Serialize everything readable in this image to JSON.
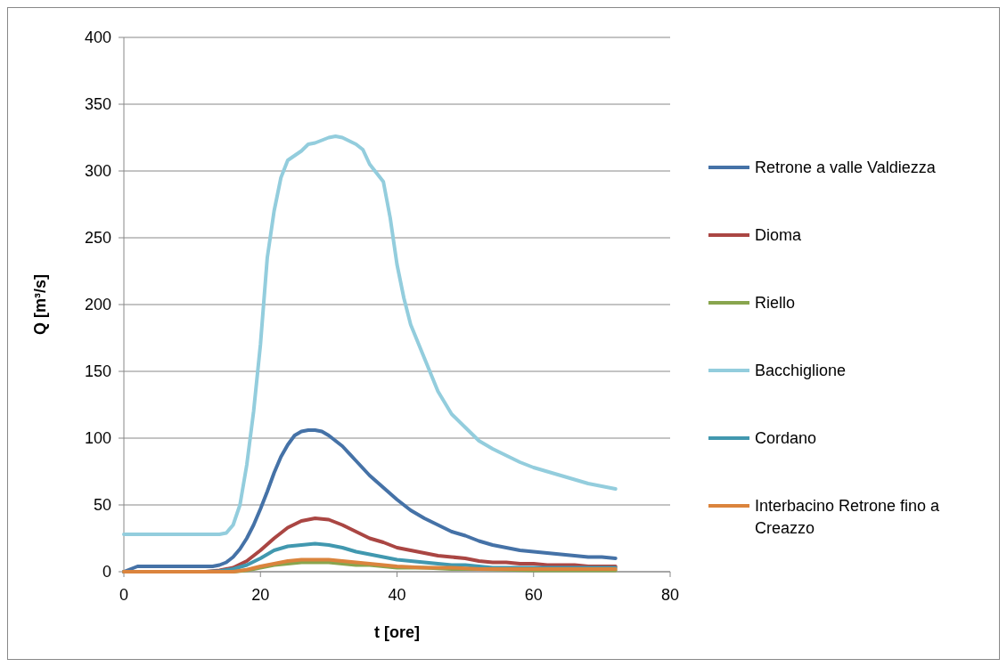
{
  "chart_data": {
    "type": "line",
    "xlabel": "t [ore]",
    "ylabel": "Q [m³/s]",
    "xlim": [
      0,
      80
    ],
    "xticks": [
      0,
      20,
      40,
      60,
      80
    ],
    "ylim": [
      0,
      400
    ],
    "yticks": [
      0,
      50,
      100,
      150,
      200,
      250,
      300,
      350,
      400
    ],
    "grid": "y",
    "legend": "right",
    "line_style": "solid",
    "series": [
      {
        "name": "Retrone a valle Valdiezza",
        "color": "#4572a7",
        "x": [
          0,
          2,
          4,
          6,
          8,
          10,
          12,
          13,
          14,
          15,
          16,
          17,
          18,
          19,
          20,
          21,
          22,
          23,
          24,
          25,
          26,
          27,
          28,
          29,
          30,
          32,
          34,
          36,
          38,
          40,
          42,
          44,
          46,
          48,
          50,
          52,
          54,
          56,
          58,
          60,
          62,
          64,
          66,
          68,
          70,
          72
        ],
        "values": [
          0,
          4,
          4,
          4,
          4,
          4,
          4,
          4,
          5,
          7,
          11,
          17,
          25,
          35,
          47,
          60,
          74,
          86,
          95,
          102,
          105,
          106,
          106,
          105,
          102,
          94,
          83,
          72,
          63,
          54,
          46,
          40,
          35,
          30,
          27,
          23,
          20,
          18,
          16,
          15,
          14,
          13,
          12,
          11,
          11,
          10
        ]
      },
      {
        "name": "Dioma",
        "color": "#aa4643",
        "x": [
          0,
          12,
          14,
          16,
          18,
          20,
          22,
          24,
          26,
          28,
          30,
          32,
          34,
          36,
          38,
          40,
          42,
          44,
          46,
          48,
          50,
          52,
          54,
          56,
          58,
          60,
          62,
          64,
          66,
          68,
          70,
          72
        ],
        "values": [
          0,
          0,
          1,
          3,
          8,
          16,
          25,
          33,
          38,
          40,
          39,
          35,
          30,
          25,
          22,
          18,
          16,
          14,
          12,
          11,
          10,
          8,
          7,
          7,
          6,
          6,
          5,
          5,
          5,
          4,
          4,
          4
        ]
      },
      {
        "name": "Riello",
        "color": "#89a54e",
        "x": [
          0,
          16,
          18,
          20,
          22,
          24,
          26,
          28,
          30,
          32,
          34,
          36,
          38,
          40,
          44,
          48,
          52,
          60,
          72
        ],
        "values": [
          0,
          0,
          1,
          3,
          5,
          6,
          7,
          7,
          7,
          6,
          5,
          5,
          4,
          3,
          3,
          2,
          2,
          1,
          1
        ]
      },
      {
        "name": "Bacchiglione",
        "color": "#93cddd",
        "x": [
          0,
          2,
          4,
          6,
          8,
          10,
          12,
          14,
          15,
          16,
          17,
          18,
          19,
          20,
          21,
          22,
          23,
          24,
          26,
          27,
          28,
          30,
          31,
          32,
          34,
          35,
          36,
          38,
          39,
          40,
          41,
          42,
          44,
          46,
          48,
          50,
          52,
          54,
          56,
          58,
          60,
          62,
          64,
          66,
          68,
          70,
          72
        ],
        "values": [
          28,
          28,
          28,
          28,
          28,
          28,
          28,
          28,
          29,
          35,
          50,
          80,
          120,
          170,
          235,
          270,
          295,
          308,
          315,
          320,
          321,
          325,
          326,
          325,
          320,
          316,
          305,
          292,
          265,
          230,
          205,
          185,
          160,
          135,
          118,
          108,
          98,
          92,
          87,
          82,
          78,
          75,
          72,
          69,
          66,
          64,
          62
        ]
      },
      {
        "name": "Cordano",
        "color": "#4198af",
        "x": [
          0,
          12,
          14,
          16,
          18,
          20,
          22,
          24,
          26,
          28,
          30,
          32,
          34,
          36,
          38,
          40,
          42,
          44,
          46,
          48,
          50,
          52,
          54,
          56,
          60,
          64,
          72
        ],
        "values": [
          0,
          0,
          0.5,
          2,
          5,
          10,
          16,
          19,
          20,
          21,
          20,
          18,
          15,
          13,
          11,
          9,
          8,
          7,
          6,
          5,
          5,
          4,
          3,
          3,
          3,
          3,
          3
        ]
      },
      {
        "name": "Interbacino Retrone fino a Creazzo",
        "color": "#db843d",
        "x": [
          0,
          16,
          18,
          20,
          22,
          24,
          26,
          28,
          30,
          32,
          34,
          36,
          38,
          40,
          44,
          48,
          52,
          60,
          72
        ],
        "values": [
          0,
          0,
          1.5,
          4,
          6,
          8,
          9,
          9,
          9,
          8,
          7,
          6,
          5,
          4,
          3,
          3,
          2,
          2,
          2
        ]
      }
    ]
  }
}
